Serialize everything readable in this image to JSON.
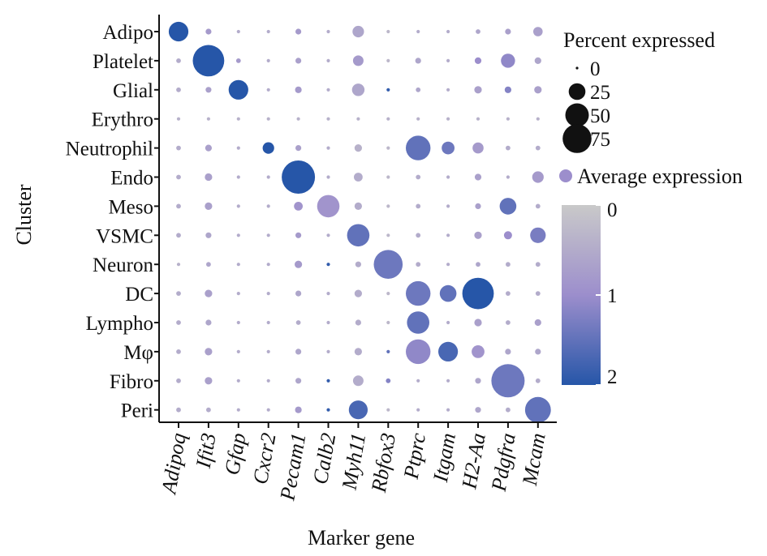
{
  "chart_data": {
    "type": "dotplot",
    "xlabel": "Marker gene",
    "ylabel": "Cluster",
    "genes": [
      "Adipoq",
      "Ifit3",
      "Gfap",
      "Cxcr2",
      "Pecam1",
      "Calb2",
      "Myh11",
      "Rbfox3",
      "Ptprc",
      "Itgam",
      "H2-Aa",
      "Pdgfra",
      "Mcam"
    ],
    "clusters": [
      "Adipo",
      "Platelet",
      "Glial",
      "Erythro",
      "Neutrophil",
      "Endo",
      "Meso",
      "VSMC",
      "Neuron",
      "DC",
      "Lympho",
      "Mφ",
      "Fibro",
      "Peri"
    ],
    "percent": [
      [
        35,
        3,
        1,
        1,
        3,
        1,
        12,
        1,
        1,
        1,
        2,
        3,
        8
      ],
      [
        2,
        90,
        2,
        1,
        3,
        1,
        10,
        1,
        3,
        1,
        4,
        18,
        4
      ],
      [
        2,
        3,
        35,
        1,
        4,
        1,
        14,
        1,
        2,
        1,
        5,
        4,
        5
      ],
      [
        1,
        1,
        1,
        1,
        1,
        1,
        1,
        1,
        1,
        1,
        1,
        1,
        1
      ],
      [
        2,
        4,
        1,
        12,
        3,
        1,
        5,
        1,
        55,
        15,
        11,
        2,
        2
      ],
      [
        2,
        5,
        1,
        1,
        100,
        1,
        7,
        1,
        2,
        1,
        4,
        1,
        12
      ],
      [
        2,
        5,
        1,
        1,
        7,
        45,
        5,
        1,
        2,
        1,
        3,
        25,
        2
      ],
      [
        2,
        3,
        1,
        1,
        3,
        1,
        45,
        1,
        2,
        1,
        5,
        6,
        22
      ],
      [
        1,
        2,
        1,
        1,
        5,
        1,
        3,
        75,
        2,
        1,
        2,
        2,
        2
      ],
      [
        2,
        5,
        1,
        1,
        3,
        1,
        5,
        1,
        55,
        25,
        90,
        2,
        2
      ],
      [
        2,
        3,
        1,
        1,
        2,
        1,
        3,
        1,
        45,
        1,
        5,
        2,
        4
      ],
      [
        2,
        5,
        1,
        1,
        3,
        1,
        5,
        1,
        55,
        35,
        15,
        3,
        3
      ],
      [
        2,
        5,
        1,
        1,
        3,
        1,
        10,
        2,
        1,
        1,
        3,
        100,
        2
      ],
      [
        2,
        2,
        1,
        1,
        4,
        1,
        32,
        1,
        1,
        1,
        3,
        2,
        60
      ]
    ],
    "expression": [
      [
        2.0,
        0.8,
        0.5,
        0.5,
        0.8,
        0.5,
        0.6,
        0.3,
        0.5,
        0.5,
        0.6,
        0.7,
        0.7
      ],
      [
        0.5,
        2.0,
        0.8,
        0.5,
        0.7,
        0.5,
        0.8,
        0.3,
        0.6,
        0.5,
        1.0,
        1.1,
        0.6
      ],
      [
        0.5,
        0.7,
        2.0,
        0.5,
        0.8,
        0.5,
        0.6,
        1.9,
        0.6,
        0.5,
        0.7,
        1.2,
        0.7
      ],
      [
        0.4,
        0.4,
        0.4,
        0.4,
        0.4,
        0.4,
        0.4,
        0.4,
        0.4,
        0.4,
        0.4,
        0.4,
        0.4
      ],
      [
        0.5,
        0.7,
        0.5,
        2.0,
        0.7,
        0.5,
        0.4,
        0.3,
        1.5,
        1.4,
        0.8,
        0.5,
        0.5
      ],
      [
        0.5,
        0.7,
        0.5,
        0.5,
        2.0,
        0.5,
        0.5,
        0.3,
        0.5,
        0.5,
        0.7,
        0.5,
        0.8
      ],
      [
        0.5,
        0.7,
        0.5,
        0.5,
        0.9,
        0.9,
        0.5,
        0.3,
        0.5,
        0.5,
        0.7,
        1.5,
        0.5
      ],
      [
        0.5,
        0.6,
        0.5,
        0.5,
        0.8,
        0.5,
        1.5,
        0.3,
        0.5,
        0.5,
        0.7,
        1.0,
        1.3
      ],
      [
        0.4,
        0.6,
        0.5,
        0.5,
        0.8,
        1.9,
        0.5,
        1.4,
        0.5,
        0.5,
        0.6,
        0.5,
        0.5
      ],
      [
        0.5,
        0.7,
        0.5,
        0.5,
        0.6,
        0.5,
        0.5,
        0.3,
        1.4,
        1.5,
        2.0,
        0.5,
        0.5
      ],
      [
        0.5,
        0.6,
        0.5,
        0.5,
        0.5,
        0.5,
        0.5,
        0.3,
        1.5,
        0.5,
        0.7,
        0.5,
        0.7
      ],
      [
        0.5,
        0.7,
        0.5,
        0.5,
        0.6,
        0.5,
        0.5,
        1.5,
        1.1,
        1.7,
        0.9,
        0.6,
        0.6
      ],
      [
        0.5,
        0.7,
        0.5,
        0.5,
        0.6,
        1.9,
        0.5,
        1.2,
        0.5,
        0.5,
        0.6,
        1.4,
        0.5
      ],
      [
        0.5,
        0.5,
        0.5,
        0.5,
        0.8,
        1.9,
        1.7,
        0.3,
        0.5,
        0.5,
        0.6,
        0.5,
        1.5
      ]
    ],
    "size_legend": {
      "title": "Percent expressed",
      "values": [
        0,
        25,
        50,
        75
      ],
      "labels": [
        "0",
        "25",
        "50",
        "75"
      ]
    },
    "color_legend": {
      "title": "Average expression",
      "range": [
        0,
        2
      ],
      "ticks": [
        0,
        1,
        2
      ],
      "tick_labels": [
        "0",
        "1",
        "2"
      ]
    },
    "colors": {
      "low": "#c9c9c9",
      "mid": "#9c8ecc",
      "high": "#2656a8",
      "axis": "#111111"
    }
  }
}
